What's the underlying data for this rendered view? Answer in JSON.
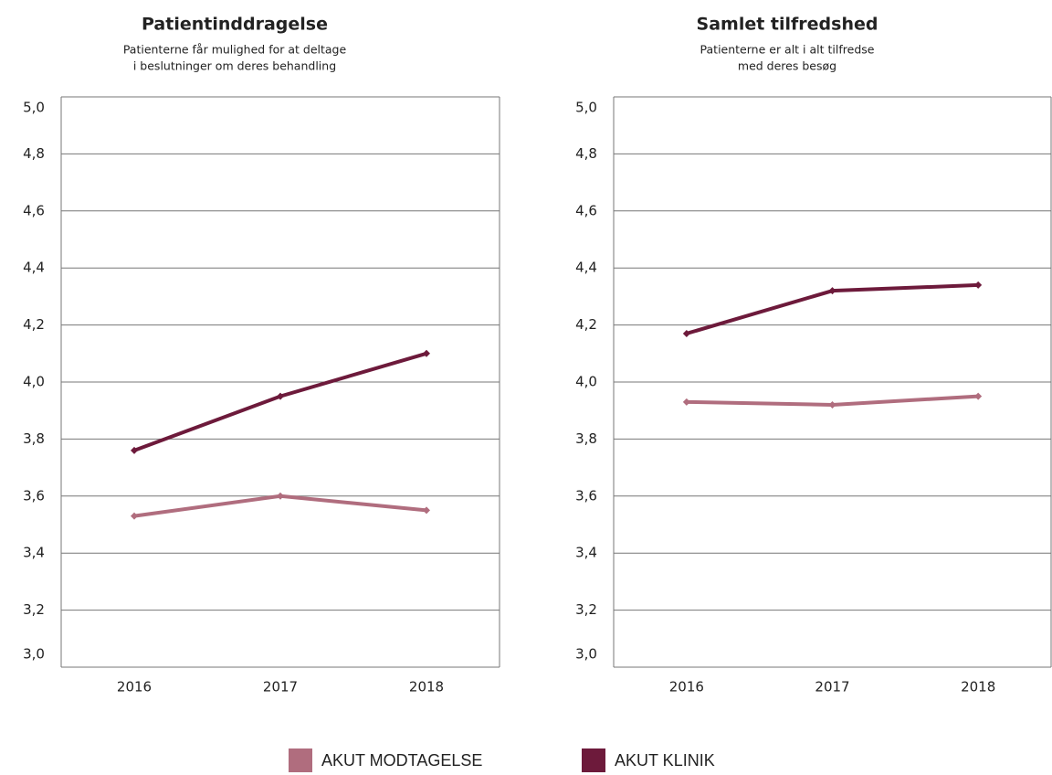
{
  "chart_data": [
    {
      "type": "line",
      "title": "Patientinddragelse",
      "subtitle": [
        "Patienterne får mulighed for at deltage",
        "i beslutninger om deres behandling"
      ],
      "categories": [
        "2016",
        "2017",
        "2018"
      ],
      "series": [
        {
          "name": "AKUT MODTAGELSE",
          "color": "#b06d7e",
          "values": [
            3.53,
            3.6,
            3.55
          ]
        },
        {
          "name": "AKUT KLINIK",
          "color": "#6d1a3b",
          "values": [
            3.76,
            3.95,
            4.1
          ]
        }
      ],
      "ylim": [
        3.0,
        5.0
      ],
      "yticks": [
        {
          "value": 3.0,
          "label": "3,0"
        },
        {
          "value": 3.2,
          "label": "3,2"
        },
        {
          "value": 3.4,
          "label": "3,4"
        },
        {
          "value": 3.6,
          "label": "3,6"
        },
        {
          "value": 3.8,
          "label": "3,8"
        },
        {
          "value": 4.0,
          "label": "4,0"
        },
        {
          "value": 4.2,
          "label": "4,2"
        },
        {
          "value": 4.4,
          "label": "4,4"
        },
        {
          "value": 4.6,
          "label": "4,6"
        },
        {
          "value": 4.8,
          "label": "4,8"
        },
        {
          "value": 5.0,
          "label": "5,0"
        }
      ],
      "grid": true
    },
    {
      "type": "line",
      "title": "Samlet tilfredshed",
      "subtitle": [
        "Patienterne er alt i alt tilfredse",
        "med deres besøg"
      ],
      "categories": [
        "2016",
        "2017",
        "2018"
      ],
      "series": [
        {
          "color": "#b06d7e",
          "values": [
            3.93,
            3.92,
            3.95
          ]
        },
        {
          "color": "#6d1a3b",
          "values": [
            4.17,
            4.32,
            4.34
          ]
        }
      ],
      "ylim": [
        3.0,
        5.0
      ],
      "yticks": [
        {
          "value": 3.0,
          "label": "3,0"
        },
        {
          "value": 3.2,
          "label": "3,2"
        },
        {
          "value": 3.4,
          "label": "3,4"
        },
        {
          "value": 3.6,
          "label": "3,6"
        },
        {
          "value": 3.8,
          "label": "3,8"
        },
        {
          "value": 4.0,
          "label": "4,0"
        },
        {
          "value": 4.2,
          "label": "4,2"
        },
        {
          "value": 4.4,
          "label": "4,4"
        },
        {
          "value": 4.6,
          "label": "4,6"
        },
        {
          "value": 4.8,
          "label": "4,8"
        },
        {
          "value": 5.0,
          "label": "5,0"
        }
      ],
      "grid": true
    }
  ]
}
